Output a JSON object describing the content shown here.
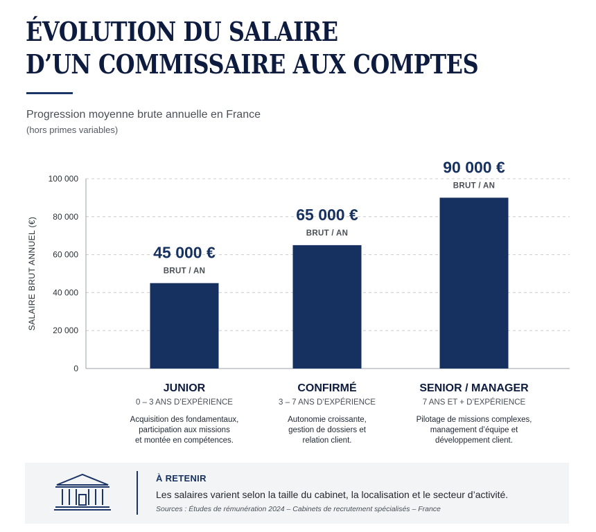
{
  "header": {
    "title_line1": "ÉVOLUTION DU SALAIRE",
    "title_line2": "D’UN COMMISSAIRE AUX COMPTES",
    "subtitle": "Progression moyenne brute annuelle en France",
    "note": "(hors primes variables)"
  },
  "chart_data": {
    "type": "bar",
    "categories": [
      "JUNIOR",
      "CONFIRMÉ",
      "SENIOR / MANAGER"
    ],
    "values": [
      45000,
      65000,
      90000
    ],
    "value_labels": [
      "45 000 €",
      "65 000 €",
      "90 000 €"
    ],
    "value_unit": "BRUT / AN",
    "ylabel": "SALAIRE BRUT ANNUEL (€)",
    "ylim": [
      0,
      100000
    ],
    "yticks": [
      0,
      20000,
      40000,
      60000,
      80000,
      100000
    ],
    "ytick_labels": [
      "0",
      "20 000",
      "40 000",
      "60 000",
      "80 000",
      "100 000"
    ],
    "grid": true,
    "bar_color": "#16305f",
    "category_subtitles": [
      "0 – 3 ANS D’EXPÉRIENCE",
      "3 – 7 ANS D’EXPÉRIENCE",
      "7 ANS ET + D’EXPÉRIENCE"
    ],
    "category_descriptions": [
      [
        "Acquisition des fondamentaux,",
        "participation aux missions",
        "et montée en compétences."
      ],
      [
        "Autonomie croissante,",
        "gestion de dossiers et",
        "relation client."
      ],
      [
        "Pilotage de missions complexes,",
        "management d’équipe et",
        "développement client."
      ]
    ]
  },
  "panel": {
    "icon": "courthouse-icon",
    "heading": "À RETENIR",
    "text": "Les salaires varient selon la taille du cabinet, la localisation et le secteur d’activité.",
    "sources": "Sources : Études de rémunération 2024 – Cabinets de recrutement spécialisés – France"
  },
  "colors": {
    "navy": "#16305f",
    "title": "#0d1b3e",
    "panel_bg": "#f3f4f6"
  }
}
